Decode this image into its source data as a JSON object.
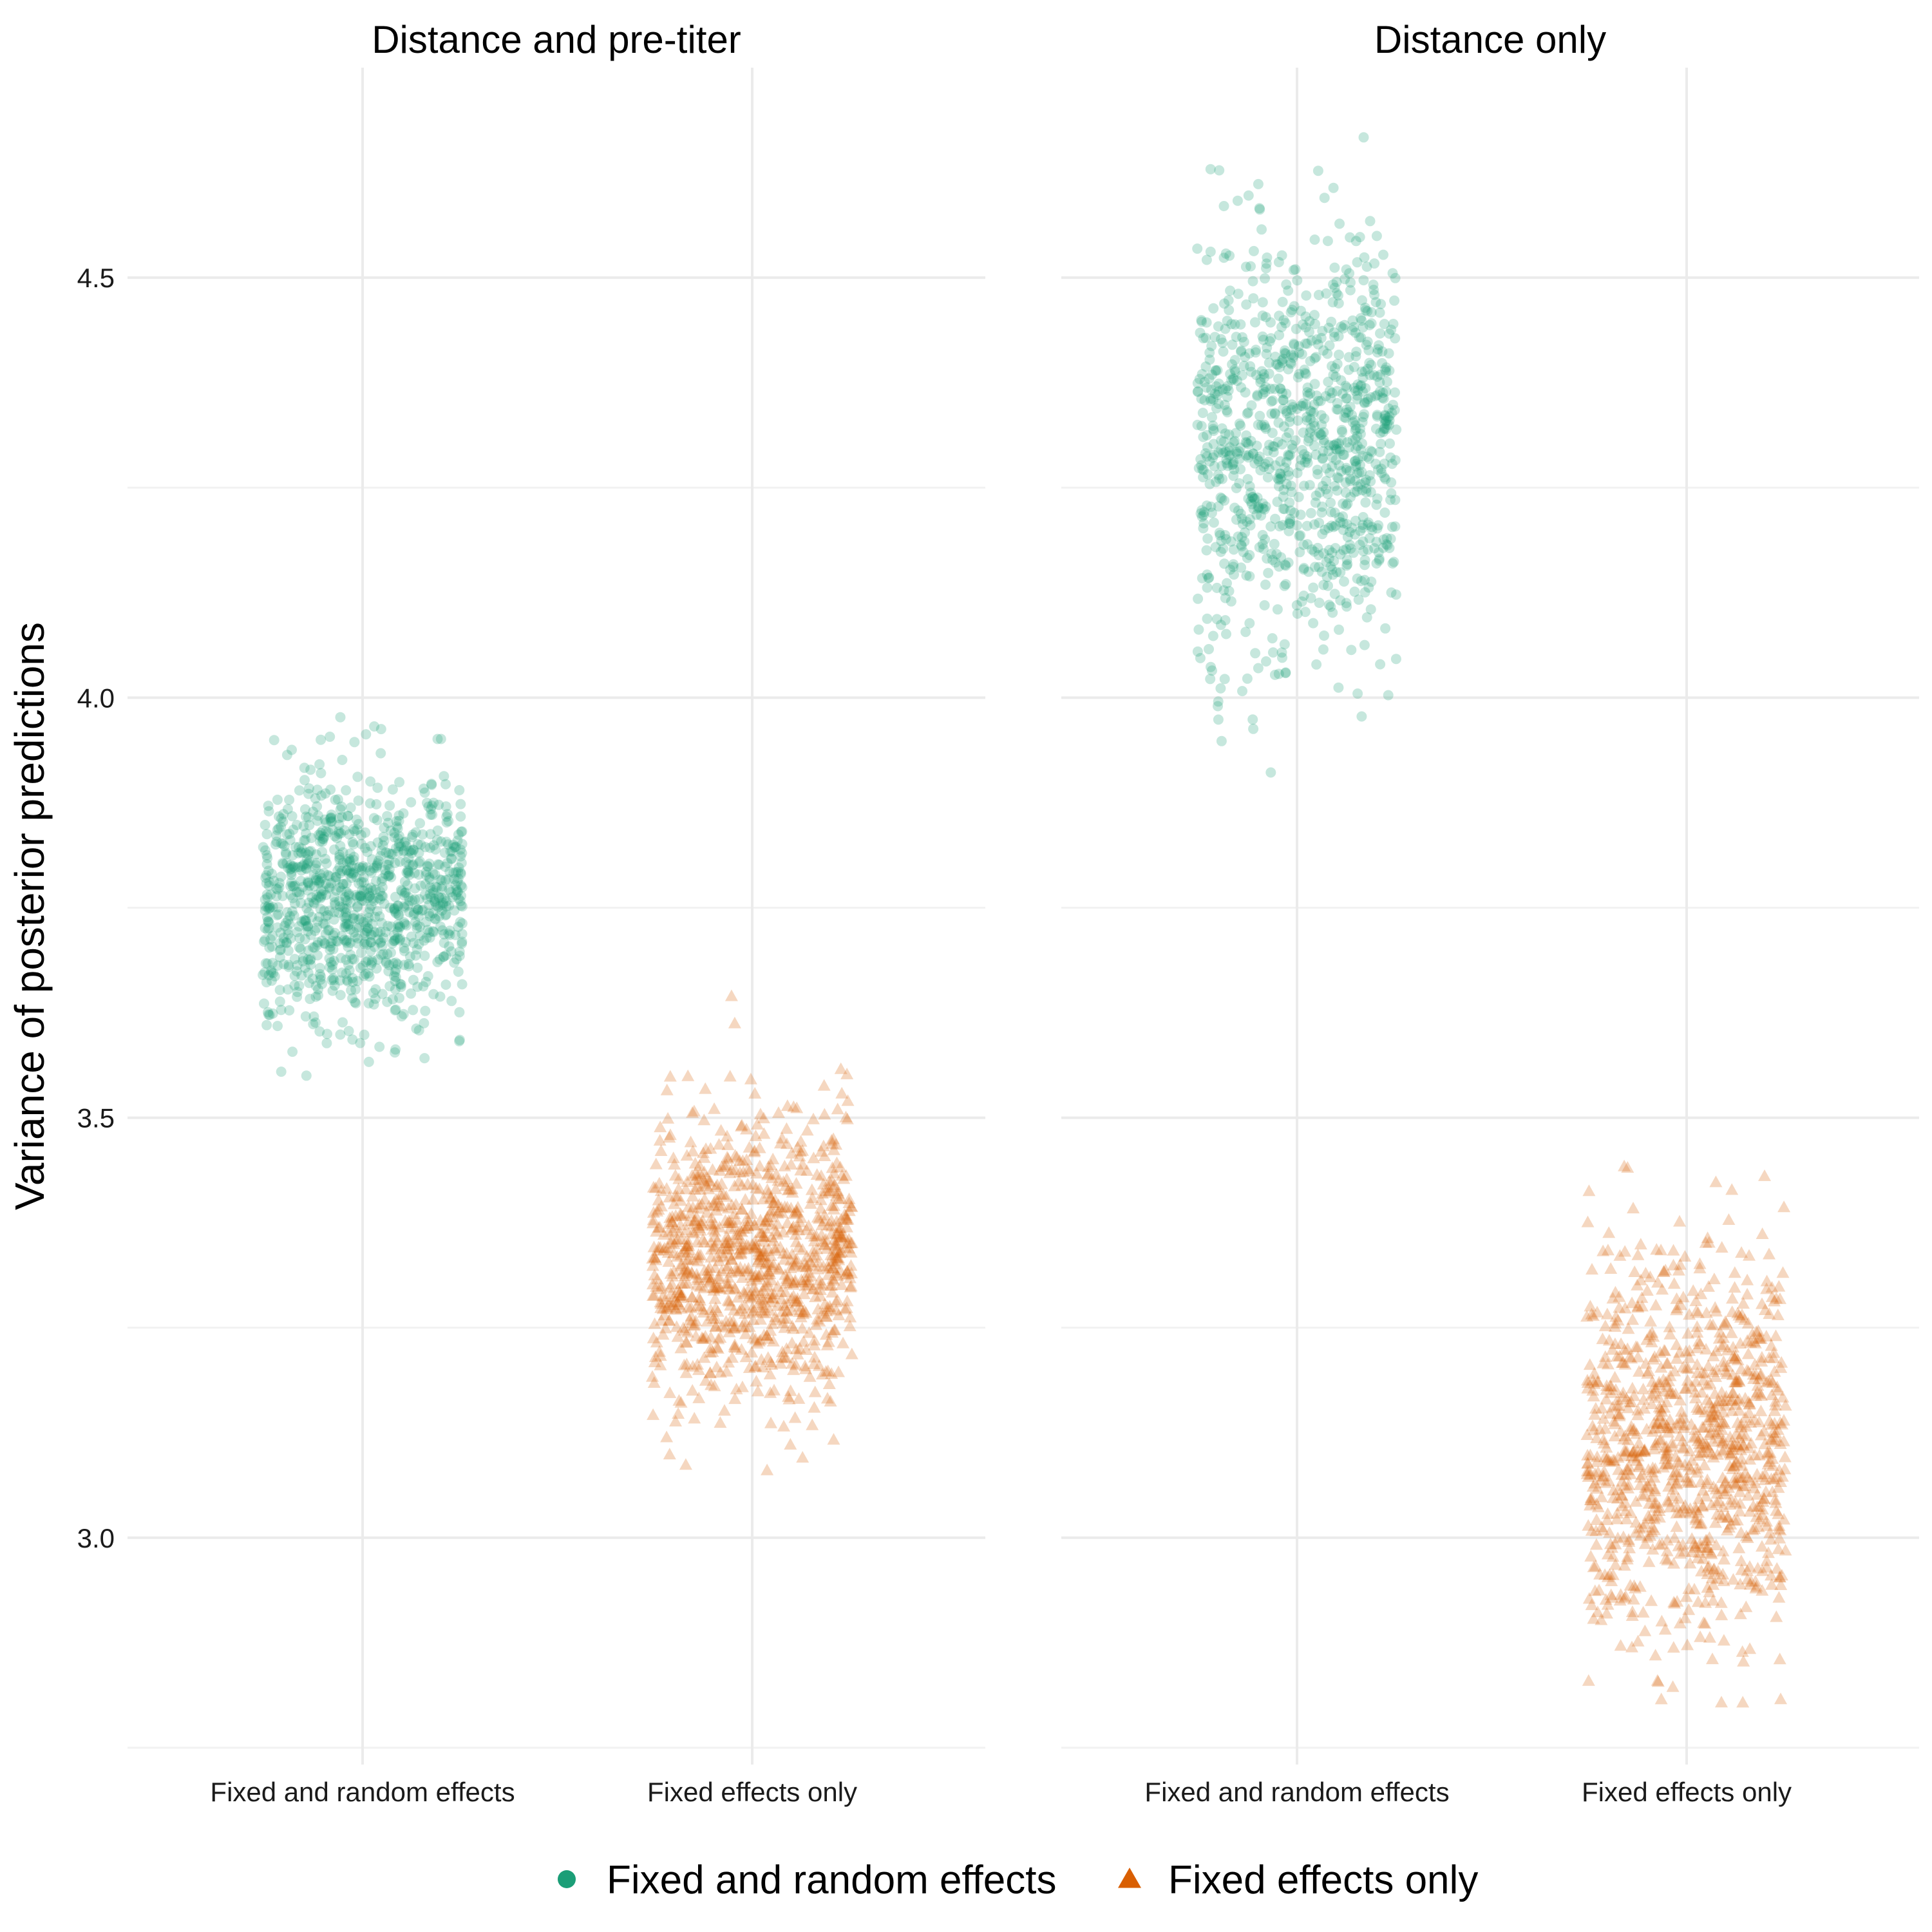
{
  "chart_data": {
    "type": "scatter",
    "subtype": "jitter",
    "ylabel": "Variance of posterior predictions",
    "xlabel": "",
    "ylim": [
      2.73,
      4.75
    ],
    "yticks": [
      3.0,
      3.5,
      4.0,
      4.5
    ],
    "yticks_minor": [
      2.75,
      3.25,
      3.75,
      4.25
    ],
    "categories": [
      "Fixed and random effects",
      "Fixed effects only"
    ],
    "grid": true,
    "legend": {
      "position": "bottom",
      "entries": [
        {
          "name": "Fixed and random effects",
          "shape": "circle",
          "color": "#1b9e77"
        },
        {
          "name": "Fixed effects only",
          "shape": "triangle",
          "color": "#d95f02"
        }
      ]
    },
    "point_alpha": 0.25,
    "facets": [
      {
        "title": "Distance and pre-titer",
        "groups": [
          {
            "category": "Fixed and random effects",
            "series": "Fixed and random effects",
            "n": 1000,
            "mean": 3.76,
            "sd": 0.075,
            "min": 3.535,
            "max": 4.045
          },
          {
            "category": "Fixed effects only",
            "series": "Fixed effects only",
            "n": 1000,
            "mean": 3.33,
            "sd": 0.085,
            "min": 3.08,
            "max": 3.645
          }
        ]
      },
      {
        "title": "Distance only",
        "groups": [
          {
            "category": "Fixed and random effects",
            "series": "Fixed and random effects",
            "n": 1000,
            "mean": 4.3,
            "sd": 0.12,
            "min": 3.895,
            "max": 4.72
          },
          {
            "category": "Fixed effects only",
            "series": "Fixed effects only",
            "n": 1000,
            "mean": 3.11,
            "sd": 0.11,
            "min": 2.795,
            "max": 3.475
          }
        ]
      }
    ]
  }
}
